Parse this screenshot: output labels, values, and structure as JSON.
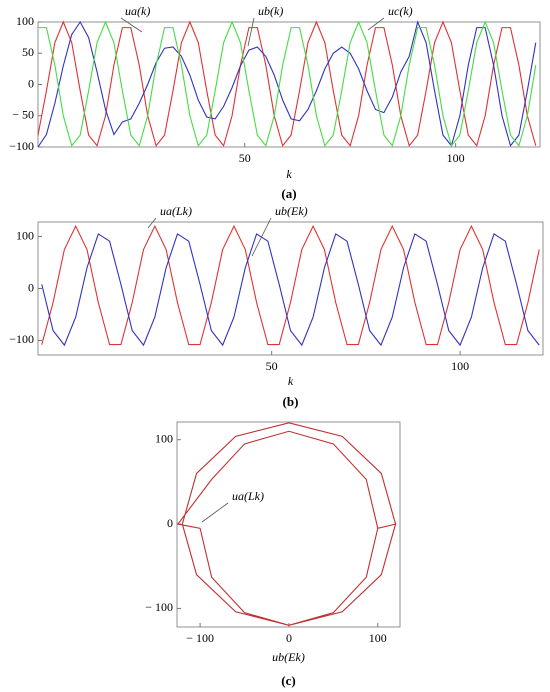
{
  "chart_data": [
    {
      "type": "line",
      "caption": "(a)",
      "x_label": "k",
      "x": [
        1,
        3,
        5,
        7,
        9,
        11,
        13,
        15,
        17,
        19,
        21,
        23,
        25,
        27,
        29,
        31,
        33,
        35,
        37,
        39,
        41,
        43,
        45,
        47,
        49,
        51,
        53,
        55,
        57,
        59,
        61,
        63,
        65,
        67,
        69,
        71,
        73,
        75,
        77,
        79,
        81,
        83,
        85,
        87,
        89,
        91,
        93,
        95,
        97,
        99,
        101,
        103,
        105,
        107,
        109,
        111,
        113,
        115,
        117,
        119
      ],
      "xlim": [
        1,
        120
      ],
      "ylim": [
        -100,
        100
      ],
      "xticks": [
        50,
        100
      ],
      "yticks": [
        {
          "value": -100,
          "label": "−100"
        },
        {
          "value": -50,
          "label": "− 50"
        },
        0,
        50,
        100
      ],
      "series": [
        {
          "name": "ua(k)",
          "color": "#e03232",
          "values": [
            -81,
            -10,
            67,
            100,
            67,
            -10,
            -81,
            -98,
            -50,
            31,
            91,
            91,
            31,
            -50,
            -98,
            -81,
            -10,
            67,
            100,
            67,
            -10,
            -81,
            -98,
            -50,
            31,
            91,
            91,
            31,
            -50,
            -98,
            -81,
            -10,
            67,
            100,
            67,
            -10,
            -81,
            -98,
            -50,
            31,
            91,
            91,
            31,
            -50,
            -98,
            -81,
            -10,
            67,
            100,
            67,
            -10,
            -81,
            -98,
            -50,
            31,
            91,
            91,
            31,
            -50,
            -98
          ]
        },
        {
          "name": "ub(k)",
          "color": "#3232c0",
          "values": [
            -100,
            -80,
            -30,
            30,
            80,
            100,
            75,
            20,
            -40,
            -80,
            -60,
            -55,
            -30,
            0,
            35,
            58,
            60,
            45,
            15,
            -25,
            -52,
            -55,
            -35,
            -5,
            30,
            55,
            60,
            45,
            15,
            -25,
            -55,
            -58,
            -40,
            -10,
            25,
            50,
            60,
            50,
            25,
            -10,
            -40,
            -45,
            -20,
            20,
            45,
            100,
            67,
            -10,
            -81,
            -98,
            -50,
            31,
            91,
            91,
            31,
            -50,
            -98,
            -81,
            -10,
            67
          ]
        },
        {
          "name": "uc(k)",
          "color": "#46dc46",
          "values": [
            91,
            91,
            31,
            -50,
            -98,
            -81,
            -10,
            67,
            100,
            67,
            -10,
            -81,
            -98,
            -50,
            31,
            91,
            91,
            31,
            -50,
            -98,
            -81,
            -10,
            67,
            100,
            67,
            -10,
            -81,
            -98,
            -50,
            31,
            91,
            91,
            31,
            -50,
            -98,
            -81,
            -10,
            67,
            100,
            67,
            -10,
            -81,
            -98,
            -50,
            31,
            91,
            91,
            31,
            -50,
            -98,
            -81,
            -10,
            67,
            100,
            67,
            -10,
            -81,
            -98,
            -50,
            31
          ]
        }
      ]
    },
    {
      "type": "line",
      "caption": "(b)",
      "x_label": "k",
      "x": [
        -11,
        -8,
        -5,
        -2,
        1,
        4,
        7,
        10,
        13,
        16,
        19,
        22,
        25,
        28,
        31,
        34,
        37,
        40,
        43,
        46,
        49,
        52,
        55,
        58,
        61,
        64,
        67,
        70,
        73,
        76,
        79,
        82,
        85,
        88,
        91,
        94,
        97,
        100,
        103,
        106,
        109,
        112,
        115,
        118,
        121
      ],
      "xlim": [
        -12,
        122
      ],
      "ylim": [
        -128,
        128
      ],
      "xticks": [
        50,
        100
      ],
      "yticks": [
        {
          "value": -100,
          "label": "−100"
        },
        0,
        100
      ],
      "series": [
        {
          "name": "ua(Lk)",
          "color": "#e03232",
          "values": [
            -108,
            -27,
            75,
            120,
            75,
            -27,
            -108,
            -108,
            -27,
            75,
            120,
            75,
            -27,
            -108,
            -108,
            -27,
            75,
            120,
            75,
            -27,
            -108,
            -108,
            -27,
            75,
            120,
            75,
            -27,
            -108,
            -108,
            -27,
            75,
            120,
            75,
            -27,
            -108,
            -108,
            -27,
            75,
            120,
            75,
            -27,
            -108,
            -108,
            -27,
            75
          ]
        },
        {
          "name": "ub(Ek)",
          "color": "#3232c0",
          "values": [
            8,
            -81,
            -109,
            -55,
            40,
            105,
            91,
            8,
            -81,
            -109,
            -55,
            40,
            105,
            91,
            8,
            -81,
            -109,
            -55,
            40,
            105,
            91,
            8,
            -81,
            -109,
            -55,
            40,
            105,
            91,
            8,
            -81,
            -109,
            -55,
            40,
            105,
            91,
            8,
            -81,
            -109,
            -55,
            40,
            105,
            91,
            8,
            -81,
            -109
          ]
        }
      ]
    },
    {
      "type": "line",
      "caption": "(c)",
      "x_label": "ub(Ek)",
      "x": [
        120,
        104,
        60,
        0,
        -60,
        -104,
        -120,
        -104,
        -60,
        0,
        60,
        104,
        120,
        100,
        87,
        50,
        0,
        -50,
        -87,
        -125,
        -100,
        -87,
        -50,
        0,
        50,
        87,
        100
      ],
      "xlim": [
        -126,
        125
      ],
      "ylim": [
        -122,
        121
      ],
      "xticks": [
        {
          "value": -100,
          "label": "− 100"
        },
        0,
        100
      ],
      "yticks": [
        {
          "value": -100,
          "label": "− 100"
        },
        0,
        100
      ],
      "series": [
        {
          "name": "ua(Lk)",
          "color": "#c03030",
          "values": [
            0,
            60,
            104,
            120,
            104,
            60,
            0,
            -60,
            -104,
            -120,
            -104,
            -60,
            0,
            -5,
            53,
            95,
            110,
            95,
            53,
            0,
            -5,
            -63,
            -105,
            -120,
            -105,
            -63,
            -5
          ]
        }
      ]
    }
  ]
}
